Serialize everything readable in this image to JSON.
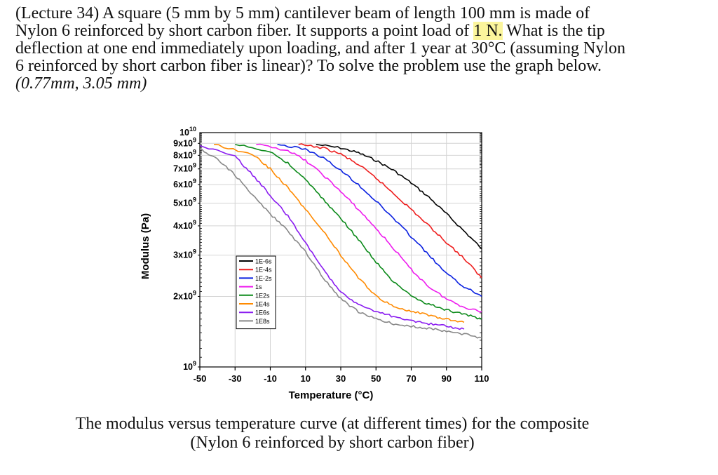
{
  "problem": {
    "line1": "(Lecture 34) A square (5 mm by 5 mm) cantilever beam of length 100 mm is made of",
    "line2_pre": "Nylon 6 reinforced by short carbon fiber. It supports a point load of ",
    "line2_highlight": "1 N.",
    "line2_post": " What is the tip",
    "line3": "deflection at one end immediately upon loading, and after 1 year at 30°C (assuming Nylon",
    "line4": "6 reinforced by short carbon fiber is linear)? To solve the problem use the graph below.",
    "answer": "(0.77mm, 3.05 mm)",
    "highlight_color": "#fbf59c"
  },
  "caption": {
    "line1": "The modulus versus temperature curve (at different times) for the composite",
    "line2": "(Nylon 6 reinforced by short carbon fiber)"
  },
  "chart_data": {
    "type": "line",
    "xlabel": "Temperature (°C)",
    "ylabel": "Modulus (Pa)",
    "xlim": [
      -50,
      110
    ],
    "ylim": [
      1000000000.0,
      10000000000.0
    ],
    "yscale": "log",
    "grid": true,
    "legend_position": "center-left",
    "x_ticks": [
      -50,
      -30,
      -10,
      10,
      30,
      50,
      70,
      90,
      110
    ],
    "y_ticks": [
      {
        "value": 10000000000.0,
        "label": "10",
        "sup": "10"
      },
      {
        "value": 9000000000.0,
        "label": "9x10",
        "sup": "9"
      },
      {
        "value": 8000000000.0,
        "label": "8x10",
        "sup": "9"
      },
      {
        "value": 7000000000.0,
        "label": "7x10",
        "sup": "9"
      },
      {
        "value": 6000000000.0,
        "label": "6x10",
        "sup": "9"
      },
      {
        "value": 5000000000.0,
        "label": "5x10",
        "sup": "9"
      },
      {
        "value": 4000000000.0,
        "label": "4x10",
        "sup": "9"
      },
      {
        "value": 3000000000.0,
        "label": "3x10",
        "sup": "9"
      },
      {
        "value": 2000000000.0,
        "label": "2x10",
        "sup": "9"
      },
      {
        "value": 1000000000.0,
        "label": "10",
        "sup": "9"
      }
    ],
    "series": [
      {
        "name": "1E-6s",
        "color": "#000000",
        "x": [
          16,
          30,
          40,
          50,
          60,
          70,
          80,
          90,
          100,
          110
        ],
        "y": [
          8900000000.0,
          8600000000.0,
          8200000000.0,
          7600000000.0,
          6900000000.0,
          6100000000.0,
          5300000000.0,
          4500000000.0,
          3800000000.0,
          3200000000.0
        ]
      },
      {
        "name": "1E-4s",
        "color": "#ee1c1c",
        "x": [
          6,
          20,
          30,
          40,
          50,
          60,
          70,
          80,
          90,
          100,
          110
        ],
        "y": [
          8900000000.0,
          8600000000.0,
          8100000000.0,
          7300000000.0,
          6400000000.0,
          5500000000.0,
          4700000000.0,
          4000000000.0,
          3400000000.0,
          2900000000.0,
          2400000000.0
        ]
      },
      {
        "name": "1E-2s",
        "color": "#0a20e0",
        "x": [
          -6,
          10,
          20,
          30,
          40,
          50,
          60,
          70,
          80,
          90,
          100,
          110
        ],
        "y": [
          8900000000.0,
          8500000000.0,
          7800000000.0,
          6900000000.0,
          6000000000.0,
          5100000000.0,
          4300000000.0,
          3600000000.0,
          3000000000.0,
          2500000000.0,
          2200000000.0,
          2000000000.0
        ]
      },
      {
        "name": "1s",
        "color": "#ee1cee",
        "x": [
          -18,
          0,
          10,
          20,
          30,
          40,
          50,
          60,
          70,
          80,
          90,
          100,
          110
        ],
        "y": [
          8900000000.0,
          8400000000.0,
          7600000000.0,
          6600000000.0,
          5600000000.0,
          4700000000.0,
          3900000000.0,
          3200000000.0,
          2600000000.0,
          2200000000.0,
          1950000000.0,
          1800000000.0,
          1720000000.0
        ]
      },
      {
        "name": "1E2s",
        "color": "#0c8a1a",
        "x": [
          -30,
          -10,
          0,
          10,
          20,
          30,
          40,
          50,
          60,
          70,
          80,
          90,
          100,
          110
        ],
        "y": [
          8900000000.0,
          8300000000.0,
          7400000000.0,
          6300000000.0,
          5200000000.0,
          4300000000.0,
          3500000000.0,
          2800000000.0,
          2300000000.0,
          2000000000.0,
          1850000000.0,
          1750000000.0,
          1680000000.0,
          1600000000.0
        ]
      },
      {
        "name": "1E4s",
        "color": "#ff8a00",
        "x": [
          -42,
          -20,
          -10,
          0,
          10,
          20,
          30,
          40,
          50,
          60,
          70,
          80,
          90,
          100
        ],
        "y": [
          8900000000.0,
          8100000000.0,
          7000000000.0,
          5800000000.0,
          4700000000.0,
          3800000000.0,
          3000000000.0,
          2400000000.0,
          2000000000.0,
          1820000000.0,
          1730000000.0,
          1660000000.0,
          1600000000.0,
          1550000000.0
        ]
      },
      {
        "name": "1E6s",
        "color": "#8a1cf0",
        "x": [
          -50,
          -30,
          -20,
          -10,
          0,
          10,
          20,
          30,
          40,
          50,
          60,
          70,
          80,
          90,
          100
        ],
        "y": [
          8800000000.0,
          7900000000.0,
          6600000000.0,
          5400000000.0,
          4400000000.0,
          3400000000.0,
          2600000000.0,
          2100000000.0,
          1850000000.0,
          1720000000.0,
          1640000000.0,
          1580000000.0,
          1530000000.0,
          1490000000.0,
          1450000000.0
        ]
      },
      {
        "name": "1E8s",
        "color": "#888888",
        "x": [
          -50,
          -40,
          -30,
          -20,
          -10,
          0,
          10,
          20,
          30,
          40,
          50,
          60,
          70,
          80,
          90,
          100,
          110
        ],
        "y": [
          8500000000.0,
          7700000000.0,
          6600000000.0,
          5400000000.0,
          4500000000.0,
          3800000000.0,
          3100000000.0,
          2400000000.0,
          1950000000.0,
          1720000000.0,
          1600000000.0,
          1530000000.0,
          1490000000.0,
          1460000000.0,
          1420000000.0,
          1380000000.0,
          1330000000.0
        ]
      }
    ]
  }
}
